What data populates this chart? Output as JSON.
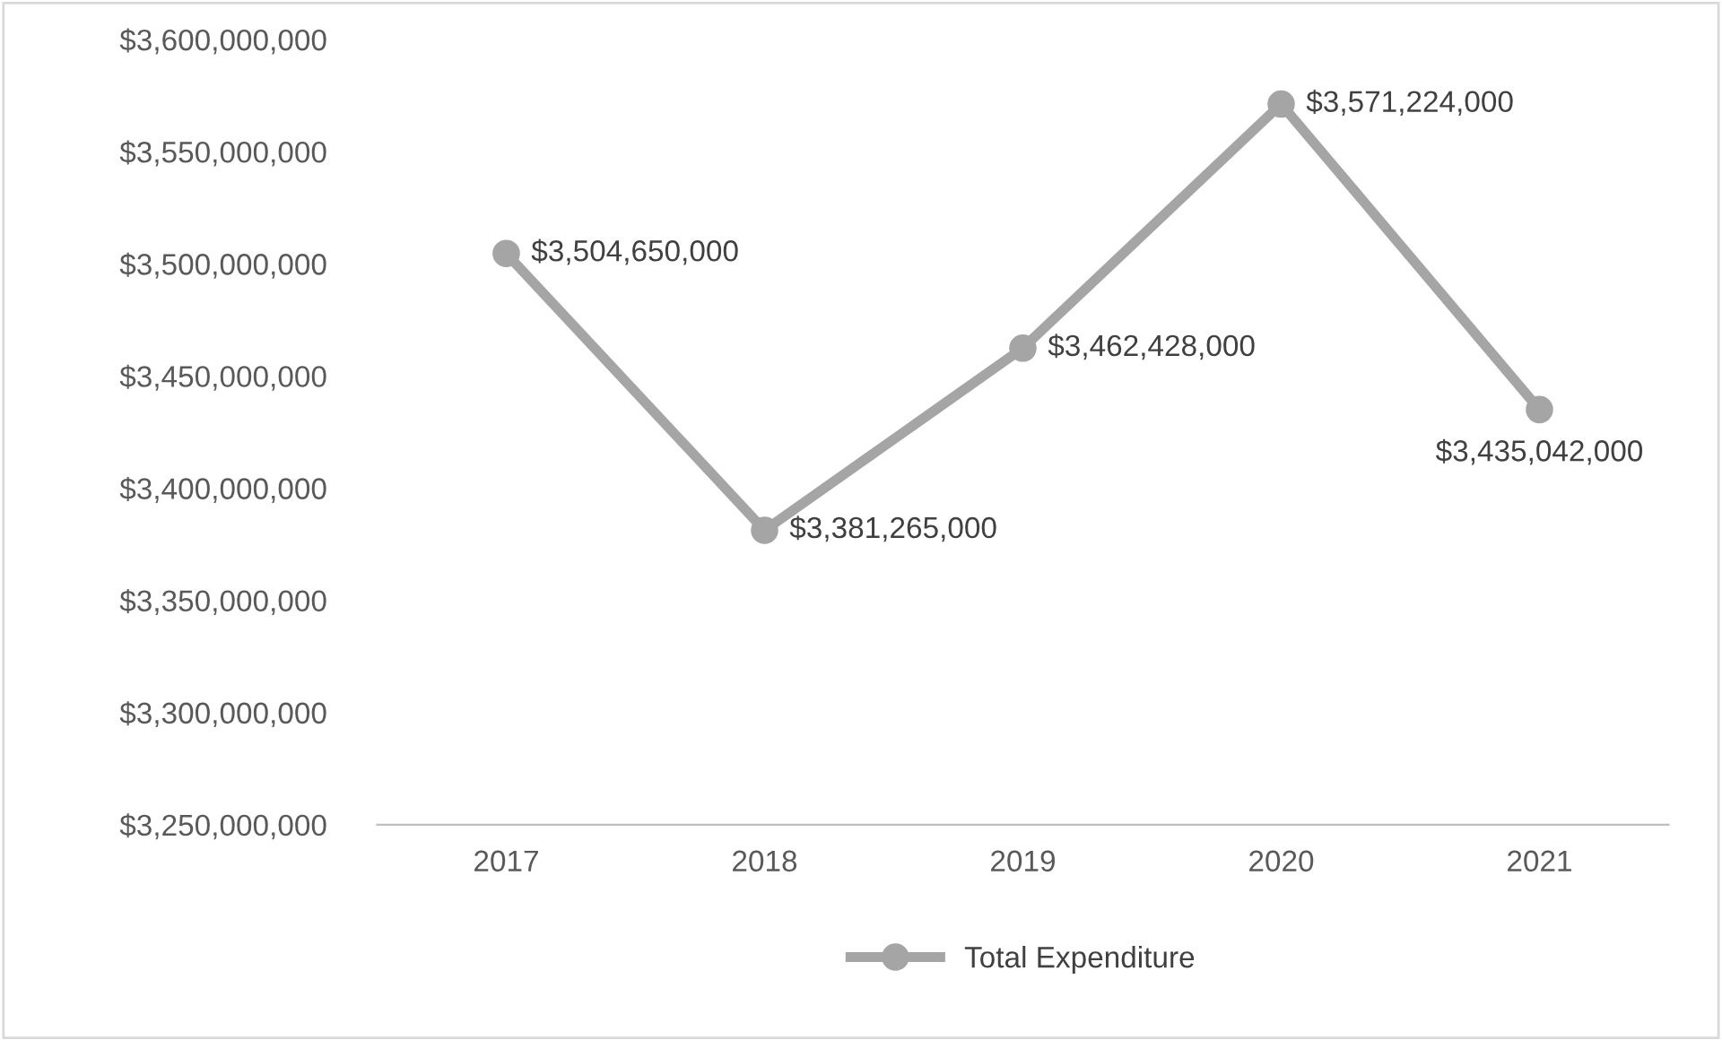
{
  "chart_data": {
    "type": "line",
    "categories": [
      "2017",
      "2018",
      "2019",
      "2020",
      "2021"
    ],
    "series": [
      {
        "name": "Total Expenditure",
        "color": "#a5a5a5",
        "values": [
          3504650000,
          3381265000,
          3462428000,
          3571224000,
          3435042000
        ],
        "value_labels": [
          "$3,504,650,000",
          "$3,381,265,000",
          "$3,462,428,000",
          "$3,571,224,000",
          "$3,435,042,000"
        ]
      }
    ],
    "ylim": [
      3250000000,
      3600000000
    ],
    "yticks": [
      {
        "value": 3250000000,
        "label": "$3,250,000,000"
      },
      {
        "value": 3300000000,
        "label": "$3,300,000,000"
      },
      {
        "value": 3350000000,
        "label": "$3,350,000,000"
      },
      {
        "value": 3400000000,
        "label": "$3,400,000,000"
      },
      {
        "value": 3450000000,
        "label": "$3,450,000,000"
      },
      {
        "value": 3500000000,
        "label": "$3,500,000,000"
      },
      {
        "value": 3550000000,
        "label": "$3,550,000,000"
      },
      {
        "value": 3600000000,
        "label": "$3,600,000,000"
      }
    ],
    "grid": false,
    "legend": "bottom",
    "marker": "circle",
    "line_style": "solid"
  }
}
